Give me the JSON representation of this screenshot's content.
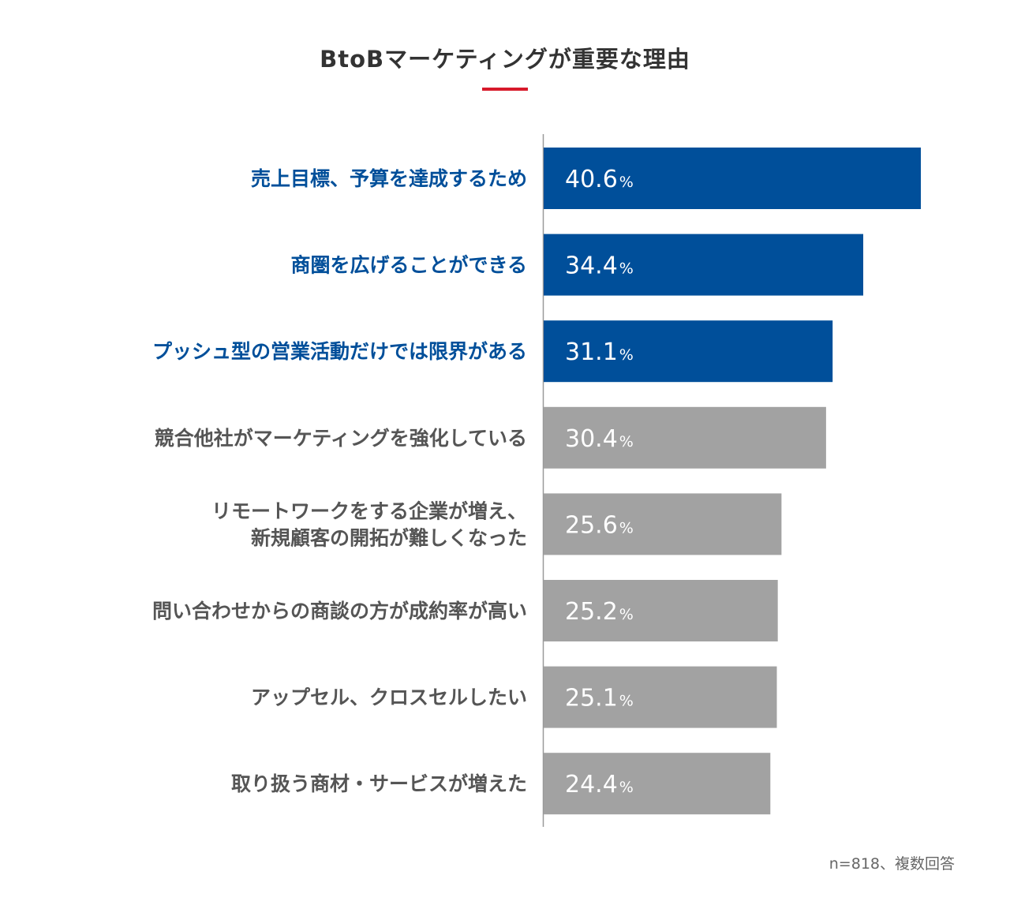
{
  "chart_data": {
    "type": "bar",
    "orientation": "horizontal",
    "title": "BtoBマーケティングが重要な理由",
    "unit": "%",
    "xlim": [
      0,
      45
    ],
    "categories": [
      [
        "売上目標、予算を達成するため"
      ],
      [
        "商圏を広げることができる"
      ],
      [
        "プッシュ型の営業活動だけでは限界がある"
      ],
      [
        "競合他社がマーケティングを強化している"
      ],
      [
        "リモートワークをする企業が増え、",
        "新規顧客の開拓が難しくなった"
      ],
      [
        "問い合わせからの商談の方が成約率が高い"
      ],
      [
        "アップセル、クロスセルしたい"
      ],
      [
        "取り扱う商材・サービスが増えた"
      ]
    ],
    "values": [
      40.6,
      34.4,
      31.1,
      30.4,
      25.6,
      25.2,
      25.1,
      24.4
    ],
    "highlight_count": 3,
    "note": "n=818、複数回答"
  },
  "colors": {
    "highlight": "#004f9a",
    "normal": "#a2a2a2",
    "highlight_label": "#004f9a",
    "normal_label": "#555555",
    "accent": "#d7192a",
    "axis": "#999999"
  }
}
